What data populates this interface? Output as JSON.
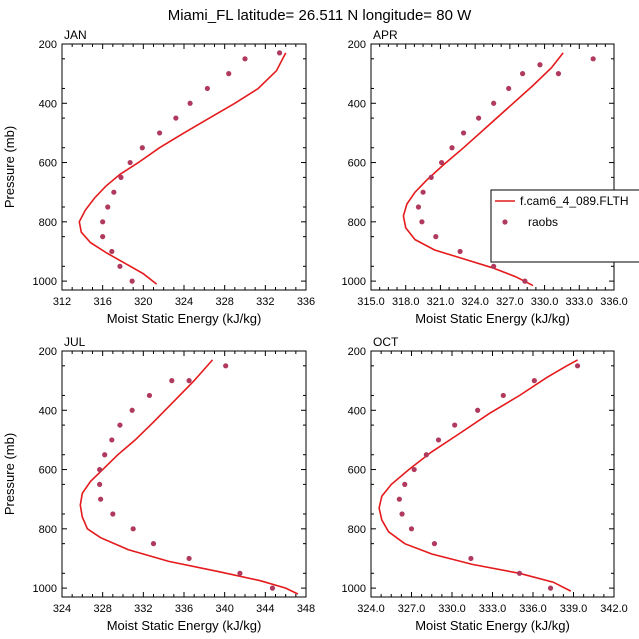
{
  "figure_title": "Miami_FL  latitude= 26.511 N longitude= 80 W",
  "colors": {
    "model": "#e41a1c",
    "obs": "#b03a5e",
    "axis": "#000000"
  },
  "legend": {
    "placement": "right",
    "entries": [
      "f.cam6_4_089.FLTH",
      "raobs"
    ]
  },
  "chart_data": [
    {
      "type": "line",
      "panel": "JAN",
      "xlabel": "Moist Static Energy (kJ/kg)",
      "ylabel": "Pressure (mb)",
      "xlim": [
        312,
        336
      ],
      "ylim": [
        200,
        1030
      ],
      "xticks": [
        "312",
        "316",
        "320",
        "324",
        "328",
        "332",
        "336"
      ],
      "yticks": [
        "200",
        "400",
        "600",
        "800",
        "1000"
      ],
      "series": [
        {
          "name": "f.cam6_4_089.FLTH",
          "style": "line",
          "x": [
            321.3,
            320.0,
            318.2,
            316.4,
            314.8,
            313.9,
            313.7,
            314.3,
            315.2,
            316.3,
            317.7,
            319.5,
            321.6,
            324.0,
            326.5,
            329.0,
            331.3,
            333.1,
            334.0
          ],
          "y": [
            1010,
            975,
            940,
            905,
            870,
            835,
            800,
            760,
            720,
            680,
            640,
            600,
            550,
            500,
            450,
            400,
            350,
            290,
            230
          ]
        },
        {
          "name": "raobs",
          "style": "markers",
          "x": [
            318.9,
            317.7,
            316.9,
            316.0,
            316.0,
            316.5,
            317.1,
            317.8,
            318.7,
            319.9,
            321.6,
            323.2,
            324.6,
            326.3,
            328.4,
            330.0,
            333.4
          ],
          "y": [
            1000,
            950,
            900,
            850,
            800,
            750,
            700,
            650,
            600,
            550,
            500,
            450,
            400,
            350,
            300,
            250,
            230
          ]
        }
      ]
    },
    {
      "type": "line",
      "panel": "APR",
      "xlabel": "Moist Static Energy (kJ/kg)",
      "ylabel": "",
      "xlim": [
        315.0,
        336.0
      ],
      "ylim": [
        200,
        1030
      ],
      "xticks": [
        "315.0",
        "318.0",
        "321.0",
        "324.0",
        "327.0",
        "330.0",
        "333.0",
        "336.0"
      ],
      "yticks": [
        "200",
        "400",
        "600",
        "800",
        "1000"
      ],
      "series": [
        {
          "name": "f.cam6_4_089.FLTH",
          "style": "line",
          "x": [
            329.0,
            327.5,
            325.5,
            323.0,
            320.5,
            318.8,
            318.0,
            317.8,
            318.1,
            318.8,
            319.8,
            321.2,
            323.0,
            325.0,
            327.0,
            329.0,
            330.6,
            331.6
          ],
          "y": [
            1015,
            985,
            955,
            925,
            895,
            860,
            820,
            780,
            740,
            700,
            660,
            610,
            550,
            480,
            410,
            340,
            280,
            230
          ]
        },
        {
          "name": "raobs",
          "style": "markers",
          "x": [
            328.3,
            325.6,
            322.7,
            320.6,
            319.4,
            319.1,
            319.5,
            320.2,
            321.1,
            322.0,
            323.0,
            324.3,
            325.6,
            326.9,
            328.1,
            329.6,
            331.2,
            334.2
          ],
          "y": [
            1000,
            950,
            900,
            850,
            800,
            750,
            700,
            650,
            600,
            550,
            500,
            450,
            400,
            350,
            300,
            270,
            300,
            250
          ]
        }
      ]
    },
    {
      "type": "line",
      "panel": "JUL",
      "xlabel": "Moist Static Energy (kJ/kg)",
      "ylabel": "Pressure (mb)",
      "xlim": [
        324,
        348
      ],
      "ylim": [
        200,
        1030
      ],
      "xticks": [
        "324",
        "328",
        "332",
        "336",
        "340",
        "344",
        "348"
      ],
      "yticks": [
        "200",
        "400",
        "600",
        "800",
        "1000"
      ],
      "series": [
        {
          "name": "f.cam6_4_089.FLTH",
          "style": "line",
          "x": [
            347.2,
            346.0,
            343.5,
            339.5,
            334.5,
            330.5,
            327.8,
            326.5,
            326.0,
            325.8,
            326.0,
            326.8,
            328.0,
            329.5,
            331.2,
            333.0,
            335.0,
            337.0,
            338.8
          ],
          "y": [
            1020,
            1000,
            975,
            945,
            910,
            870,
            830,
            800,
            760,
            720,
            680,
            640,
            600,
            550,
            500,
            440,
            370,
            300,
            230
          ]
        },
        {
          "name": "raobs",
          "style": "markers",
          "x": [
            344.7,
            341.5,
            336.5,
            333.0,
            331.0,
            329.0,
            327.8,
            327.7,
            327.7,
            328.2,
            328.9,
            329.7,
            330.9,
            332.6,
            334.8,
            336.5,
            340.1
          ],
          "y": [
            1000,
            950,
            900,
            850,
            800,
            750,
            700,
            650,
            600,
            550,
            500,
            450,
            400,
            350,
            300,
            300,
            250
          ]
        }
      ]
    },
    {
      "type": "line",
      "panel": "OCT",
      "xlabel": "Moist Static Energy (kJ/kg)",
      "ylabel": "",
      "xlim": [
        324.0,
        342.0
      ],
      "ylim": [
        200,
        1030
      ],
      "xticks": [
        "324.0",
        "327.0",
        "330.0",
        "333.0",
        "336.0",
        "339.0",
        "342.0"
      ],
      "yticks": [
        "200",
        "400",
        "600",
        "800",
        "1000"
      ],
      "series": [
        {
          "name": "f.cam6_4_089.FLTH",
          "style": "line",
          "x": [
            338.8,
            337.5,
            335.0,
            331.5,
            328.5,
            326.5,
            325.3,
            324.8,
            324.6,
            324.8,
            325.5,
            326.8,
            328.5,
            330.5,
            332.8,
            335.0,
            337.0,
            338.5,
            339.3
          ],
          "y": [
            1010,
            980,
            950,
            920,
            885,
            850,
            810,
            770,
            730,
            690,
            650,
            600,
            540,
            480,
            410,
            350,
            290,
            250,
            230
          ]
        },
        {
          "name": "raobs",
          "style": "markers",
          "x": [
            337.3,
            335.0,
            331.4,
            328.7,
            327.0,
            326.3,
            326.1,
            326.5,
            327.2,
            328.1,
            329.0,
            330.2,
            331.9,
            333.8,
            336.1,
            339.3
          ],
          "y": [
            1000,
            950,
            900,
            850,
            800,
            750,
            700,
            650,
            600,
            550,
            500,
            450,
            400,
            350,
            300,
            250
          ]
        }
      ]
    }
  ]
}
